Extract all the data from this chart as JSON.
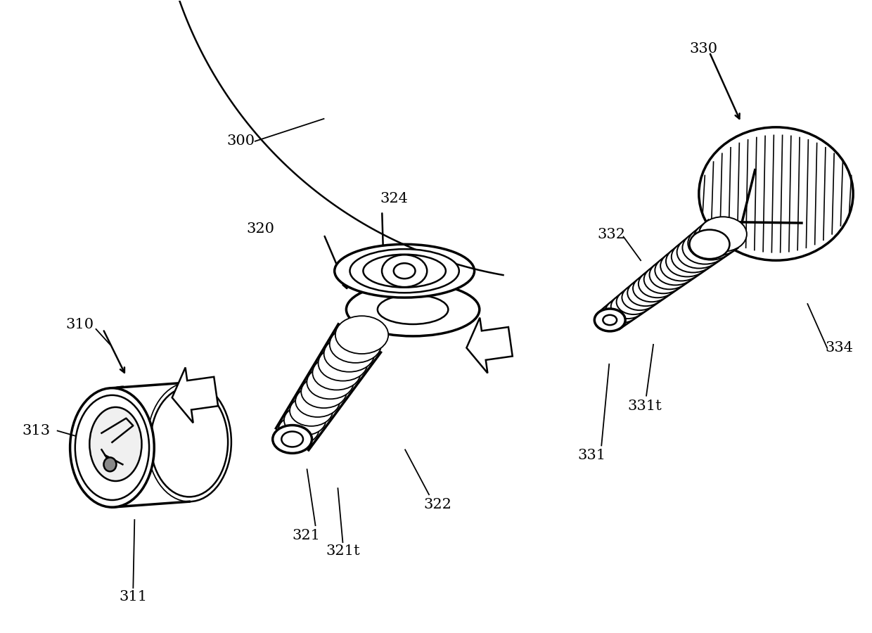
{
  "bg_color": "#ffffff",
  "line_color": "#000000",
  "fig_width": 12.4,
  "fig_height": 9.0,
  "font_size": 15,
  "lw_main": 1.8,
  "lw_thick": 2.5,
  "lw_thin": 1.0
}
